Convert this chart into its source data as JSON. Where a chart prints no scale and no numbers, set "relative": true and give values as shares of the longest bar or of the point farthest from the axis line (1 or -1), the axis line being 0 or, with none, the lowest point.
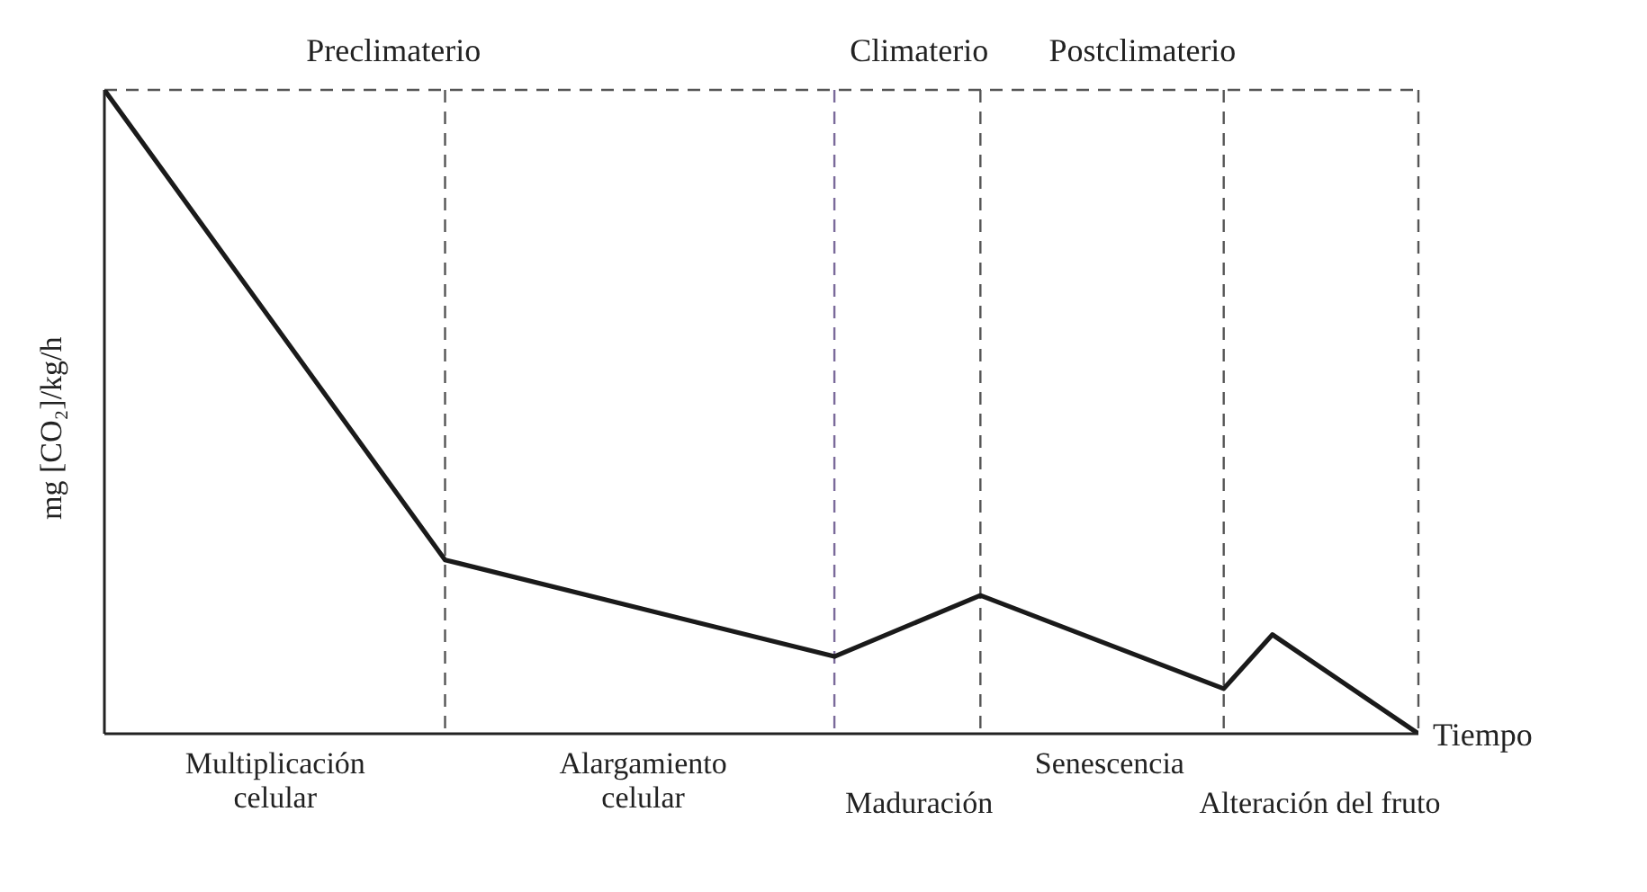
{
  "chart_data": {
    "type": "line",
    "relative": true,
    "ylabel": "mg [CO₂]/kg/h",
    "xlabel": "Tiempo",
    "marker": "none",
    "line_style": "solid",
    "grid": true,
    "categories": [
      null,
      null,
      null,
      null,
      null,
      null,
      null,
      null,
      null,
      null,
      null,
      null,
      null,
      null,
      null,
      null,
      null,
      null,
      null,
      null,
      null,
      null,
      null,
      null,
      null,
      null,
      null,
      null
    ],
    "series": [
      {
        "color": "#1a1a1a",
        "values": [
          1,
          null,
          null,
          null,
          null,
          null,
          null,
          0.27,
          null,
          null,
          null,
          null,
          null,
          null,
          null,
          0.12,
          null,
          null,
          0.215,
          null,
          null,
          null,
          null,
          0.07,
          0.154,
          null,
          null,
          0
        ]
      }
    ],
    "annotations": [
      "Preclimaterio",
      "Climaterio",
      "Postclimaterio",
      "Multiplicación celular",
      "Alargamiento celular",
      "Maduración",
      "Senescencia",
      "Alteración del fruto"
    ]
  }
}
